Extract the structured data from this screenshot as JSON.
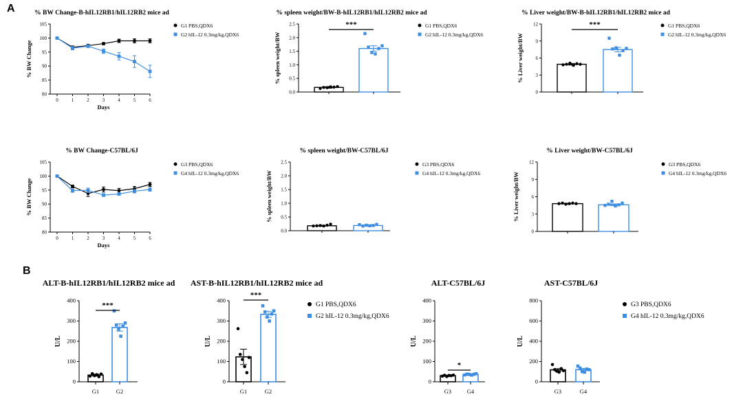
{
  "panel_labels": {
    "a": "A",
    "b": "B"
  },
  "colors": {
    "g_black": "#000000",
    "g_blue": "#3d8ee0"
  },
  "chart_data": [
    {
      "id": "bw_b",
      "type": "line",
      "title": "% BW Change-B-hIL12RB1/hIL12RB2 mice ad",
      "xlabel": "Days",
      "ylabel": "% BW Change",
      "x": [
        0,
        1,
        2,
        3,
        4,
        5,
        6
      ],
      "ylim": [
        80,
        105
      ],
      "yticks": [
        80,
        85,
        90,
        95,
        100,
        105
      ],
      "series": [
        {
          "name": "G1 PBS,QDX6",
          "color": "#000000",
          "marker": "circle",
          "values": [
            100,
            96.7,
            97.3,
            98,
            99,
            99,
            99
          ],
          "err": [
            0.3,
            0.5,
            0.5,
            0.4,
            0.6,
            0.7,
            0.7
          ]
        },
        {
          "name": "G2 hIL-12 0.3mg/kg,QDX6",
          "color": "#3d8ee0",
          "marker": "square",
          "values": [
            100,
            96.4,
            97.1,
            95.3,
            93.5,
            91.6,
            88.1
          ],
          "err": [
            0.3,
            0.6,
            0.5,
            0.8,
            1.3,
            2.1,
            2.2
          ]
        }
      ]
    },
    {
      "id": "spleen_b",
      "type": "bar",
      "title": "% spleen weight/BW-B-hIL12RB1/hIL12RB2 mice ad",
      "ylabel": "% spleen weight/BW",
      "ylim": [
        0,
        2.5
      ],
      "yticks": [
        0.0,
        0.5,
        1.0,
        1.5,
        2.0,
        2.5
      ],
      "series": [
        {
          "name": "G1 PBS,QDX6",
          "color": "#000000",
          "marker": "circle",
          "value": 0.17,
          "err": 0.03,
          "points": [
            0.13,
            0.17,
            0.16,
            0.19,
            0.18,
            0.2
          ]
        },
        {
          "name": "G2 hIL-12 0.3mg/kg,QDX6",
          "color": "#3d8ee0",
          "marker": "square",
          "value": 1.6,
          "err": 0.1,
          "points": [
            2.15,
            1.65,
            1.45,
            1.4,
            1.6,
            1.7
          ]
        }
      ],
      "significance": "***"
    },
    {
      "id": "liver_b",
      "type": "bar",
      "title": "% Liver weight/BW-B-hIL12RB1/hIL12RB2 mice ad",
      "ylabel": "% Liver weight/BW",
      "ylim": [
        0,
        12
      ],
      "yticks": [
        0,
        3,
        6,
        9,
        12
      ],
      "series": [
        {
          "name": "G1 PBS,QDX6",
          "color": "#000000",
          "marker": "circle",
          "value": 4.9,
          "err": 0.15,
          "points": [
            4.8,
            4.9,
            5.1,
            4.7,
            5.0,
            4.9
          ]
        },
        {
          "name": "G2 hIL-12 0.3mg/kg,QDX6",
          "color": "#3d8ee0",
          "marker": "square",
          "value": 7.5,
          "err": 0.4,
          "points": [
            9.5,
            7.6,
            7.8,
            6.5,
            7.3,
            7.7
          ]
        }
      ],
      "significance": "***"
    },
    {
      "id": "bw_c57",
      "type": "line",
      "title": "% BW Change-C57BL/6J",
      "xlabel": "Days",
      "ylabel": "% BW Change",
      "x": [
        0,
        1,
        2,
        3,
        4,
        5,
        6
      ],
      "ylim": [
        80,
        105
      ],
      "yticks": [
        80,
        85,
        90,
        95,
        100,
        105
      ],
      "series": [
        {
          "name": "G3 PBS,QDX6",
          "color": "#000000",
          "marker": "circle",
          "values": [
            100,
            96.3,
            93.8,
            95.2,
            94.8,
            95.5,
            97
          ],
          "err": [
            0.3,
            0.5,
            1.1,
            0.9,
            0.8,
            0.8,
            0.7
          ]
        },
        {
          "name": "G4 hIL-12 0.3mg/kg,QDX6",
          "color": "#3d8ee0",
          "marker": "square",
          "values": [
            100,
            94.8,
            94.9,
            93.2,
            93.6,
            94.6,
            95.2
          ],
          "err": [
            0.3,
            0.6,
            0.8,
            0.5,
            0.5,
            0.6,
            0.6
          ]
        }
      ]
    },
    {
      "id": "spleen_c57",
      "type": "bar",
      "title": "% spleen weight/BW-C57BL/6J",
      "ylabel": "% spleen weight/BW",
      "ylim": [
        0,
        2.5
      ],
      "yticks": [
        0.0,
        0.5,
        1.0,
        1.5,
        2.0,
        2.5
      ],
      "series": [
        {
          "name": "G3 PBS,QDX6",
          "color": "#000000",
          "marker": "circle",
          "value": 0.18,
          "err": 0.02,
          "points": [
            0.17,
            0.18,
            0.19,
            0.17,
            0.2,
            0.24
          ]
        },
        {
          "name": "G4 hIL-12 0.3mg/kg,QDX6",
          "color": "#3d8ee0",
          "marker": "square",
          "value": 0.19,
          "err": 0.02,
          "points": [
            0.22,
            0.17,
            0.2,
            0.18,
            0.19,
            0.23
          ]
        }
      ]
    },
    {
      "id": "liver_c57",
      "type": "bar",
      "title": "% Liver weight/BW-C57BL/6J",
      "ylabel": "% Liver weight/BW",
      "ylim": [
        0,
        12
      ],
      "yticks": [
        0,
        3,
        6,
        9,
        12
      ],
      "series": [
        {
          "name": "G3 PBS,QDX6",
          "color": "#000000",
          "marker": "circle",
          "value": 4.8,
          "err": 0.08,
          "points": [
            4.8,
            4.9,
            4.7,
            4.8,
            4.9,
            4.8
          ]
        },
        {
          "name": "G4 hIL-12 0.3mg/kg,QDX6",
          "color": "#3d8ee0",
          "marker": "square",
          "value": 4.6,
          "err": 0.15,
          "points": [
            4.5,
            4.7,
            5.2,
            4.4,
            4.6,
            4.9
          ]
        }
      ]
    },
    {
      "id": "alt_b",
      "type": "bar",
      "title": "ALT-B-hIL12RB1/hIL12RB2 mice ad",
      "ylabel": "U/L",
      "categories": [
        "G1",
        "G2"
      ],
      "ylim": [
        0,
        400
      ],
      "yticks": [
        0,
        100,
        200,
        300,
        400
      ],
      "series": [
        {
          "name": "G1 PBS,QDX6",
          "color": "#000000",
          "marker": "circle",
          "value": 33,
          "err": 5,
          "points": [
            28,
            40,
            30,
            35,
            25,
            38
          ]
        },
        {
          "name": "G2 hIL-12 0.3mg/kg,QDX6",
          "color": "#3d8ee0",
          "marker": "square",
          "value": 268,
          "err": 18,
          "points": [
            350,
            280,
            260,
            225,
            275,
            290
          ]
        }
      ],
      "significance": "***"
    },
    {
      "id": "ast_b",
      "type": "bar",
      "title": "AST-B-hIL12RB1/hIL12RB2 mice ad",
      "ylabel": "U/L",
      "categories": [
        "G1",
        "G2"
      ],
      "ylim": [
        0,
        400
      ],
      "yticks": [
        0,
        100,
        200,
        300,
        400
      ],
      "series": [
        {
          "name": "G1 PBS,QDX6",
          "color": "#000000",
          "marker": "circle",
          "value": 123,
          "err": 38,
          "points": [
            262,
            135,
            110,
            75,
            45,
            120
          ]
        },
        {
          "name": "G2 hIL-12 0.3mg/kg,QDX6",
          "color": "#3d8ee0",
          "marker": "square",
          "value": 333,
          "err": 15,
          "points": [
            375,
            345,
            320,
            300,
            335,
            350
          ]
        }
      ],
      "significance": "***"
    },
    {
      "id": "alt_c57",
      "type": "bar",
      "title": "ALT-C57BL/6J",
      "ylabel": "U/L",
      "categories": [
        "G3",
        "G4"
      ],
      "ylim": [
        0,
        400
      ],
      "yticks": [
        0,
        100,
        200,
        300,
        400
      ],
      "series": [
        {
          "name": "G3 PBS,QDX6",
          "color": "#000000",
          "marker": "circle",
          "value": 30,
          "err": 3,
          "points": [
            28,
            32,
            26,
            31,
            30,
            33
          ]
        },
        {
          "name": "G4 hIL-12 0.3mg/kg,QDX6",
          "color": "#3d8ee0",
          "marker": "square",
          "value": 36,
          "err": 2,
          "points": [
            34,
            38,
            36,
            33,
            37,
            40
          ]
        }
      ],
      "significance": "*"
    },
    {
      "id": "ast_c57",
      "type": "bar",
      "title": "AST-C57BL/6J",
      "ylabel": "U/L",
      "categories": [
        "G3",
        "G4"
      ],
      "ylim": [
        0,
        800
      ],
      "yticks": [
        0,
        200,
        400,
        600,
        800
      ],
      "series": [
        {
          "name": "G3 PBS,QDX6",
          "color": "#000000",
          "marker": "circle",
          "value": 118,
          "err": 12,
          "points": [
            170,
            120,
            105,
            95,
            130,
            110
          ]
        },
        {
          "name": "G4 hIL-12 0.3mg/kg,QDX6",
          "color": "#3d8ee0",
          "marker": "square",
          "value": 120,
          "err": 12,
          "points": [
            155,
            135,
            100,
            95,
            125,
            120
          ]
        }
      ]
    }
  ]
}
